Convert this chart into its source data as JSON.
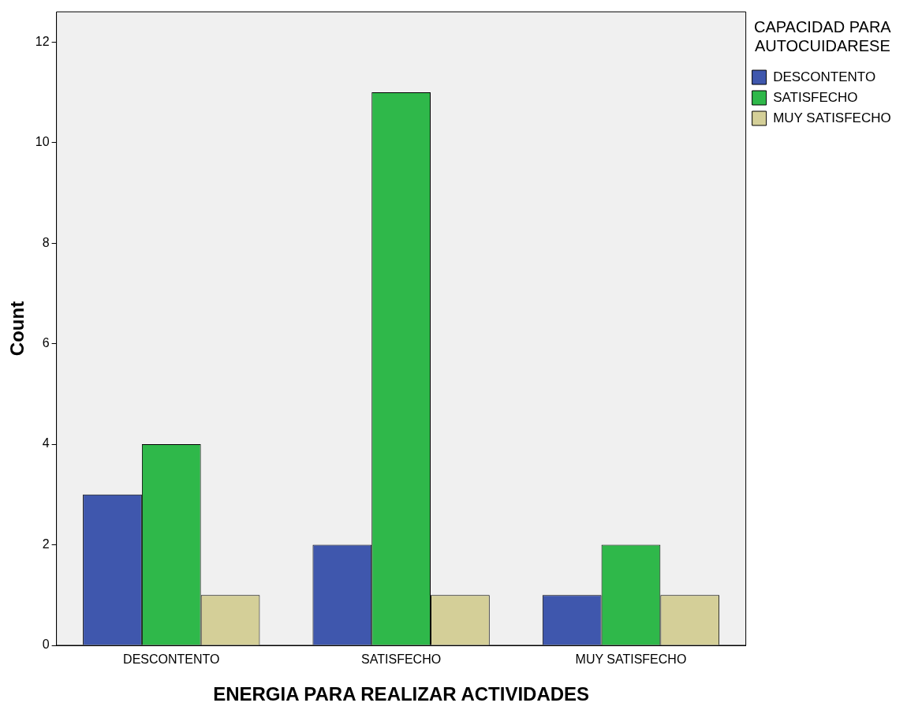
{
  "chart_data": {
    "type": "bar",
    "xlabel": "ENERGIA PARA REALIZAR ACTIVIDADES",
    "ylabel": "Count",
    "legend_title": "CAPACIDAD PARA\nAUTOCUIDARESE",
    "legend": "right",
    "categories": [
      "DESCONTENTO",
      "SATISFECHO",
      "MUY SATISFECHO"
    ],
    "series": [
      {
        "name": "DESCONTENTO",
        "color": "#3f57ad",
        "values": [
          3,
          2,
          1
        ]
      },
      {
        "name": "SATISFECHO",
        "color": "#2fb84a",
        "values": [
          4,
          11,
          2
        ]
      },
      {
        "name": "MUY SATISFECHO",
        "color": "#d4cf98",
        "values": [
          1,
          1,
          1
        ]
      }
    ],
    "ylim": [
      0,
      12.6
    ],
    "yticks": [
      0,
      2,
      4,
      6,
      8,
      10,
      12
    ],
    "grid": false
  }
}
